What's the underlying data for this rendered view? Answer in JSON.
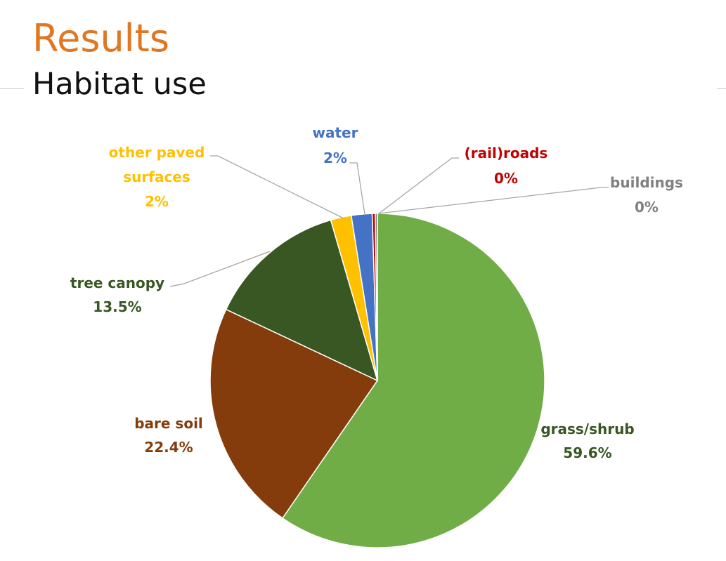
{
  "page": {
    "title": "Results",
    "subtitle": "Habitat use"
  },
  "chart_data": {
    "type": "pie",
    "title": "",
    "start_angle_deg": 0,
    "direction": "clockwise",
    "slices": [
      {
        "name": "grass/shrub",
        "label": "grass/shrub",
        "value": 59.6,
        "value_label": "59.6%",
        "color": "#70AD47",
        "label_color": "#375623"
      },
      {
        "name": "bare soil",
        "label": "bare soil",
        "value": 22.4,
        "value_label": "22.4%",
        "color": "#843C0C",
        "label_color": "#843C0C"
      },
      {
        "name": "tree canopy",
        "label": "tree canopy",
        "value": 13.5,
        "value_label": "13.5%",
        "color": "#385723",
        "label_color": "#385723"
      },
      {
        "name": "other paved surfaces",
        "label": "other paved surfaces",
        "value": 2,
        "value_label": "2%",
        "color": "#FFC000",
        "label_color": "#FFC000"
      },
      {
        "name": "water",
        "label": "water",
        "value": 2,
        "value_label": "2%",
        "color": "#4472C4",
        "label_color": "#4472C4"
      },
      {
        "name": "(rail)roads",
        "label": "(rail)roads",
        "value": 0.3,
        "value_label": "0%",
        "color": "#C00000",
        "label_color": "#C00000"
      },
      {
        "name": "buildings",
        "label": "buildings",
        "value": 0.2,
        "value_label": "0%",
        "color": "#808080",
        "label_color": "#808080"
      }
    ]
  }
}
